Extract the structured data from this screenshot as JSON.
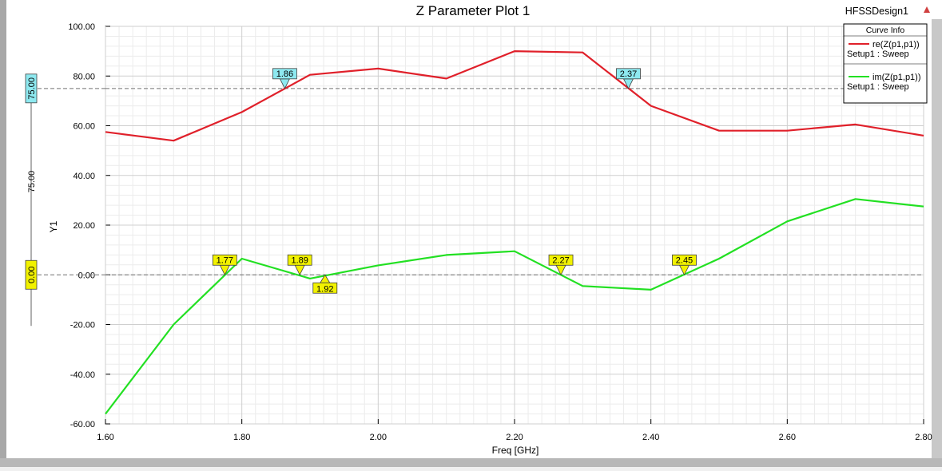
{
  "window": {
    "design_name": "HFSSDesign1"
  },
  "chart_data": {
    "type": "line",
    "title": "Z Parameter Plot 1",
    "xlabel": "Freq [GHz]",
    "ylabel": "Y1",
    "xlim": [
      1.6,
      2.8
    ],
    "ylim": [
      -60,
      100
    ],
    "x_ticks": [
      "1.60",
      "1.80",
      "2.00",
      "2.20",
      "2.40",
      "2.60",
      "2.80"
    ],
    "y_ticks": [
      "100.00",
      "80.00",
      "60.00",
      "40.00",
      "20.00",
      "0.00",
      "-20.00",
      "-40.00",
      "-60.00"
    ],
    "grid": true,
    "legend": {
      "title": "Curve Info",
      "position": "top-right"
    },
    "series": [
      {
        "name": "re(Z(p1,p1))",
        "sub": "Setup1 : Sweep",
        "color": "#e0202a",
        "x": [
          1.6,
          1.7,
          1.8,
          1.9,
          2.0,
          2.1,
          2.2,
          2.3,
          2.4,
          2.5,
          2.6,
          2.7,
          2.8
        ],
        "y": [
          57.5,
          54.0,
          65.5,
          80.5,
          83.0,
          79.0,
          90.0,
          89.5,
          68.0,
          58.0,
          58.0,
          60.5,
          56.0
        ]
      },
      {
        "name": "im(Z(p1,p1))",
        "sub": "Setup1 : Sweep",
        "color": "#22e022",
        "x": [
          1.6,
          1.7,
          1.8,
          1.9,
          2.0,
          2.1,
          2.2,
          2.3,
          2.4,
          2.5,
          2.6,
          2.7,
          2.8
        ],
        "y": [
          -56.0,
          -20.0,
          6.5,
          -1.5,
          3.8,
          8.0,
          9.5,
          -4.5,
          -6.0,
          6.5,
          21.5,
          30.5,
          27.5
        ]
      }
    ],
    "reference_lines": [
      {
        "value": 75.0,
        "label": "75.00",
        "color": "#8ee9f0"
      },
      {
        "value": 0.0,
        "label": "0.00",
        "color": "#f2f200"
      }
    ],
    "y_axis_band_label": "75.00",
    "markers": [
      {
        "label": "1.86",
        "x": 1.863,
        "y": 75.0,
        "color": "#8ee9f0",
        "below": false
      },
      {
        "label": "2.37",
        "x": 2.367,
        "y": 75.0,
        "color": "#8ee9f0",
        "below": false
      },
      {
        "label": "1.77",
        "x": 1.775,
        "y": 0.0,
        "color": "#f2f200",
        "below": false
      },
      {
        "label": "1.89",
        "x": 1.885,
        "y": 0.0,
        "color": "#f2f200",
        "below": false
      },
      {
        "label": "1.92",
        "x": 1.922,
        "y": 0.0,
        "color": "#f2f200",
        "below": true
      },
      {
        "label": "2.27",
        "x": 2.268,
        "y": 0.0,
        "color": "#f2f200",
        "below": false
      },
      {
        "label": "2.45",
        "x": 2.449,
        "y": 0.0,
        "color": "#f2f200",
        "below": false
      }
    ]
  }
}
